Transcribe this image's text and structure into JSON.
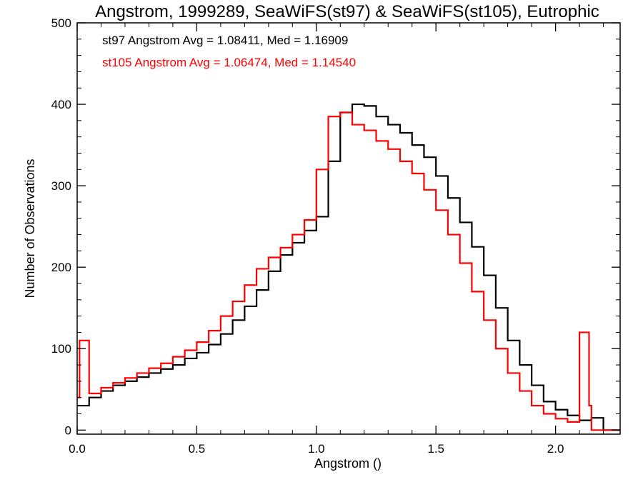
{
  "chart_data": {
    "type": "line",
    "title": "Angstrom, 1999289, SeaWiFS(st97) & SeaWiFS(st105), Eutrophic",
    "xlabel": "Angstrom ()",
    "ylabel": "Number of Observations",
    "xlim": [
      0.0,
      2.27
    ],
    "ylim": [
      -5,
      500
    ],
    "xticks": [
      "0.0",
      "0.5",
      "1.0",
      "1.5",
      "2.0"
    ],
    "yticks": [
      "0",
      "100",
      "200",
      "300",
      "400",
      "500"
    ],
    "grid": false,
    "legend_position": "top-left",
    "annotations": [
      {
        "text": "st97 Angstrom Avg = 1.08411, Med = 1.16909",
        "color": "#000000"
      },
      {
        "text": "st105 Angstrom Avg = 1.06474, Med = 1.14540",
        "color": "#ff0000"
      }
    ],
    "series": [
      {
        "name": "st97",
        "color": "#000000",
        "x": [
          0.0,
          0.05,
          0.1,
          0.15,
          0.2,
          0.25,
          0.3,
          0.35,
          0.4,
          0.45,
          0.5,
          0.55,
          0.6,
          0.65,
          0.7,
          0.75,
          0.8,
          0.85,
          0.9,
          0.95,
          1.0,
          1.05,
          1.1,
          1.15,
          1.2,
          1.25,
          1.3,
          1.35,
          1.4,
          1.45,
          1.5,
          1.55,
          1.6,
          1.65,
          1.7,
          1.75,
          1.8,
          1.85,
          1.9,
          1.95,
          2.0,
          2.05,
          2.1,
          2.15,
          2.2,
          2.27
        ],
        "y": [
          30,
          40,
          48,
          55,
          60,
          65,
          70,
          75,
          80,
          88,
          95,
          105,
          118,
          135,
          152,
          172,
          195,
          215,
          230,
          245,
          262,
          330,
          390,
          400,
          398,
          385,
          375,
          365,
          350,
          335,
          312,
          285,
          255,
          225,
          190,
          150,
          110,
          80,
          55,
          35,
          25,
          18,
          12,
          15,
          0,
          0
        ]
      },
      {
        "name": "st105",
        "color": "#ff0000",
        "x": [
          0.0,
          0.01,
          0.05,
          0.1,
          0.15,
          0.2,
          0.25,
          0.3,
          0.35,
          0.4,
          0.45,
          0.5,
          0.55,
          0.6,
          0.65,
          0.7,
          0.75,
          0.8,
          0.85,
          0.9,
          0.95,
          1.0,
          1.05,
          1.1,
          1.15,
          1.2,
          1.25,
          1.3,
          1.35,
          1.4,
          1.45,
          1.5,
          1.55,
          1.6,
          1.65,
          1.7,
          1.75,
          1.8,
          1.85,
          1.9,
          1.95,
          2.0,
          2.05,
          2.1,
          2.14,
          2.15,
          2.16,
          2.2,
          2.27
        ],
        "y": [
          40,
          110,
          45,
          52,
          58,
          64,
          70,
          76,
          82,
          90,
          98,
          108,
          122,
          140,
          158,
          178,
          198,
          212,
          224,
          240,
          258,
          320,
          385,
          390,
          375,
          368,
          355,
          345,
          330,
          315,
          295,
          270,
          240,
          205,
          170,
          135,
          100,
          70,
          48,
          30,
          20,
          14,
          10,
          120,
          30,
          0,
          0,
          0,
          0
        ]
      }
    ]
  }
}
